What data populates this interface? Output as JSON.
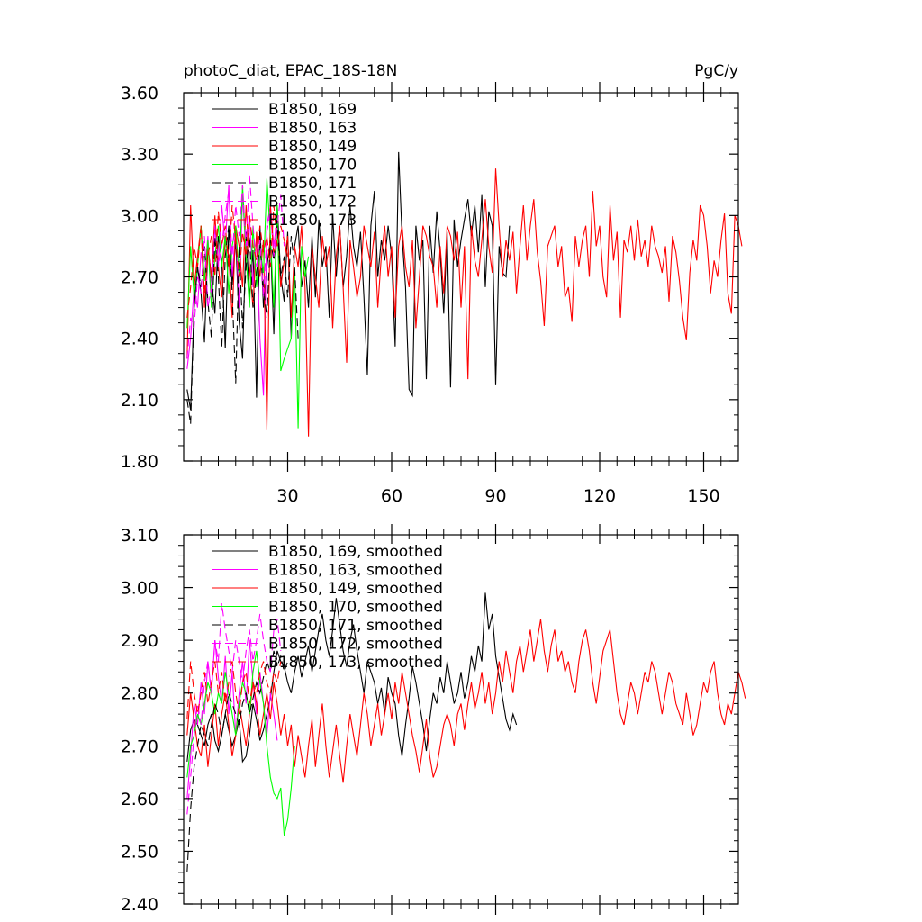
{
  "header": {
    "title": "photoC_diat, EPAC_18S-18N",
    "units": "PgC/y"
  },
  "chart_data": [
    {
      "type": "line",
      "title": "photoC_diat, EPAC_18S-18N",
      "units": "PgC/y",
      "xlim": [
        0,
        160
      ],
      "ylim": [
        1.8,
        3.6
      ],
      "x_ticks": [
        30,
        60,
        90,
        120,
        150
      ],
      "x_tick_labels": [
        "30",
        "60",
        "90",
        "120",
        "150"
      ],
      "y_ticks": [
        1.8,
        2.1,
        2.4,
        2.7,
        3.0,
        3.3,
        3.6
      ],
      "y_tick_labels": [
        "1.80",
        "2.10",
        "2.40",
        "2.70",
        "3.00",
        "3.30",
        "3.60"
      ],
      "legend_position": "top-left",
      "series": [
        {
          "name": "B1850, 169",
          "color": "#000000",
          "dash": false,
          "values": [
            2.15,
            2.05,
            2.55,
            2.75,
            2.62,
            2.38,
            2.85,
            2.7,
            2.52,
            2.9,
            2.78,
            2.35,
            2.95,
            2.66,
            2.88,
            2.48,
            2.3,
            2.92,
            2.6,
            2.83,
            2.11,
            2.95,
            2.55,
            2.75,
            2.88,
            2.42,
            3.05,
            2.7,
            2.58,
            2.92,
            2.4,
            2.85,
            2.95,
            2.65,
            2.78,
            2.55,
            2.9,
            2.6,
            2.98,
            2.75,
            2.85,
            2.5,
            3.0,
            2.7,
            2.95,
            2.65,
            2.8,
            3.05,
            2.85,
            2.75,
            2.92,
            2.6,
            2.22,
            2.95,
            3.12,
            2.7,
            2.88,
            2.78,
            2.95,
            2.8,
            2.36,
            3.31,
            2.9,
            2.65,
            2.15,
            2.12,
            2.95,
            2.78,
            2.88,
            2.2,
            2.95,
            2.72,
            3.02,
            2.82,
            2.52,
            2.92,
            2.16,
            2.98,
            2.75,
            2.88,
            2.98,
            3.08,
            2.9,
            3.05,
            2.82,
            3.1,
            2.65,
            3.02,
            2.95,
            2.17,
            2.85,
            2.72,
            2.7,
            2.95
          ]
        },
        {
          "name": "B1850, 163",
          "color": "#ff00ff",
          "dash": false,
          "values": [
            2.25,
            2.4,
            2.65,
            2.55,
            2.82,
            2.7,
            2.9,
            2.6,
            2.95,
            2.75,
            3.05,
            2.85,
            3.15,
            2.7,
            2.95,
            2.55,
            3.1,
            2.8,
            3.0,
            2.65,
            2.9,
            2.4,
            2.12,
            2.95,
            3.05,
            2.85,
            3.0
          ]
        },
        {
          "name": "B1850, 149",
          "color": "#ff0000",
          "dash": false,
          "values": [
            2.3,
            3.05,
            2.65,
            2.8,
            2.95,
            2.55,
            2.85,
            2.7,
            3.0,
            2.75,
            2.6,
            2.9,
            2.8,
            2.5,
            2.95,
            2.85,
            2.65,
            3.05,
            2.75,
            2.55,
            2.92,
            2.7,
            2.88,
            1.95,
            3.05,
            2.8,
            2.95,
            2.65,
            2.78,
            2.9,
            2.5,
            2.85,
            2.75,
            2.95,
            2.65,
            1.92,
            2.85,
            2.7,
            2.55,
            2.9,
            2.75,
            2.85,
            2.45,
            2.8,
            2.95,
            2.65,
            2.28,
            2.88,
            2.75,
            2.6,
            2.7,
            2.95,
            2.85,
            2.75,
            2.92,
            2.55,
            2.8,
            2.95,
            2.7,
            2.85,
            2.5,
            2.85,
            2.95,
            2.75,
            2.65,
            2.88,
            2.45,
            2.7,
            2.95,
            2.9,
            2.8,
            2.75,
            2.55,
            2.85,
            2.62,
            2.95,
            2.9,
            2.78,
            2.92,
            2.55,
            2.85,
            2.2,
            2.95,
            2.78,
            2.7,
            2.88,
            3.08,
            2.85,
            2.72,
            3.23,
            2.95,
            2.7,
            2.88,
            2.78,
            2.92,
            2.62,
            2.85,
            3.05,
            2.78,
            2.95,
            3.08,
            2.82,
            2.68,
            2.46,
            2.85,
            2.9,
            2.95,
            2.75,
            2.85,
            2.6,
            2.65,
            2.48,
            2.9,
            2.75,
            2.88,
            2.95,
            2.7,
            3.12,
            2.85,
            2.95,
            2.7,
            2.6,
            3.05,
            2.78,
            2.92,
            2.5,
            2.88,
            2.82,
            2.95,
            2.78,
            2.98,
            2.8,
            2.88,
            2.75,
            2.95,
            2.85,
            2.8,
            2.72,
            2.85,
            2.58,
            2.9,
            2.82,
            2.68,
            2.5,
            2.39,
            2.72,
            2.88,
            2.78,
            3.05,
            3.0,
            2.85,
            2.62,
            2.78,
            2.7,
            2.88,
            3.01,
            2.62,
            2.52,
            3.0,
            2.95,
            2.85
          ]
        },
        {
          "name": "B1850, 170",
          "color": "#00ff00",
          "dash": false,
          "values": [
            2.45,
            2.85,
            2.6,
            2.75,
            2.95,
            2.68,
            2.88,
            2.55,
            2.8,
            2.95,
            2.75,
            2.9,
            2.62,
            2.85,
            2.95,
            2.7,
            3.15,
            2.8,
            2.55,
            2.95,
            2.65,
            2.85,
            2.72,
            3.18,
            2.9,
            2.55,
            3.05,
            2.24,
            2.3,
            2.35,
            2.4,
            2.75,
            1.96,
            2.85,
            2.7,
            2.8
          ]
        },
        {
          "name": "B1850, 171",
          "color": "#000000",
          "dash": true,
          "values": [
            2.1,
            1.98,
            2.55,
            2.75,
            2.65,
            2.85,
            2.58,
            2.4,
            2.9,
            2.7,
            2.35,
            2.8,
            2.95,
            2.62,
            2.18,
            2.85,
            2.45,
            2.75,
            2.9,
            2.55,
            2.72,
            2.85,
            2.65,
            2.5,
            2.88,
            2.78,
            2.95,
            2.7,
            2.8,
            2.6,
            2.9,
            2.75,
            2.4
          ]
        },
        {
          "name": "B1850, 172",
          "color": "#ff00ff",
          "dash": true,
          "values": [
            2.3,
            2.5,
            2.45,
            2.7,
            2.62,
            2.9,
            2.55,
            2.65,
            2.95,
            2.75,
            2.85,
            3.0,
            3.12,
            2.8,
            3.05,
            2.9,
            3.15,
            2.85,
            3.2,
            2.95,
            2.75,
            2.88,
            2.6,
            2.92,
            3.02,
            2.8,
            2.95,
            3.1,
            2.85
          ]
        },
        {
          "name": "B1850, 173",
          "color": "#ff0000",
          "dash": true,
          "values": [
            2.5,
            2.65,
            2.85,
            2.75,
            2.95,
            2.62,
            2.8,
            2.9,
            2.7,
            3.02,
            2.85,
            2.95,
            2.75,
            3.05,
            2.88,
            2.7,
            2.92,
            2.8,
            3.0,
            2.85,
            2.78,
            2.95,
            2.82,
            2.9,
            2.75,
            3.05,
            2.85,
            2.95,
            2.88,
            2.8
          ]
        }
      ]
    },
    {
      "type": "line",
      "xlim": [
        0,
        160
      ],
      "ylim": [
        2.4,
        3.1
      ],
      "x_ticks": [
        30,
        60,
        90,
        120,
        150
      ],
      "x_tick_labels": [],
      "y_ticks": [
        2.4,
        2.5,
        2.6,
        2.7,
        2.8,
        2.9,
        3.0,
        3.1
      ],
      "y_tick_labels": [
        "2.40",
        "2.50",
        "2.60",
        "2.70",
        "2.80",
        "2.90",
        "3.00",
        "3.10"
      ],
      "legend_position": "top-left",
      "series": [
        {
          "name": "B1850, 169, smoothed",
          "color": "#000000",
          "dash": false,
          "values": [
            2.67,
            2.73,
            2.75,
            2.74,
            2.72,
            2.7,
            2.74,
            2.76,
            2.71,
            2.69,
            2.72,
            2.76,
            2.73,
            2.7,
            2.72,
            2.75,
            2.67,
            2.68,
            2.72,
            2.78,
            2.75,
            2.71,
            2.73,
            2.76,
            2.79,
            2.84,
            2.88,
            2.86,
            2.85,
            2.82,
            2.8,
            2.84,
            2.87,
            2.83,
            2.86,
            2.89,
            2.84,
            2.88,
            2.92,
            2.95,
            2.9,
            2.87,
            2.92,
            2.98,
            2.93,
            2.88,
            2.85,
            2.9,
            2.93,
            2.88,
            2.84,
            2.8,
            2.86,
            2.84,
            2.82,
            2.78,
            2.81,
            2.76,
            2.83,
            2.8,
            2.78,
            2.72,
            2.68,
            2.74,
            2.79,
            2.85,
            2.82,
            2.78,
            2.74,
            2.69,
            2.75,
            2.8,
            2.78,
            2.83,
            2.8,
            2.86,
            2.82,
            2.78,
            2.8,
            2.84,
            2.79,
            2.82,
            2.87,
            2.84,
            2.89,
            2.86,
            2.99,
            2.92,
            2.95,
            2.87,
            2.83,
            2.79,
            2.75,
            2.73,
            2.76,
            2.74
          ]
        },
        {
          "name": "B1850, 163, smoothed",
          "color": "#ff00ff",
          "dash": false,
          "values": [
            2.6,
            2.68,
            2.78,
            2.74,
            2.82,
            2.76,
            2.86,
            2.8,
            2.9,
            2.83,
            2.78,
            2.87,
            2.76,
            2.84,
            2.72,
            2.8,
            2.86,
            2.78,
            2.9,
            2.82,
            2.76,
            2.84,
            2.78,
            2.72,
            2.8,
            2.76,
            2.71
          ]
        },
        {
          "name": "B1850, 149, smoothed",
          "color": "#ff0000",
          "dash": false,
          "values": [
            2.72,
            2.8,
            2.75,
            2.7,
            2.68,
            2.74,
            2.66,
            2.72,
            2.78,
            2.7,
            2.76,
            2.8,
            2.74,
            2.68,
            2.72,
            2.78,
            2.74,
            2.7,
            2.76,
            2.82,
            2.78,
            2.72,
            2.76,
            2.8,
            2.75,
            2.82,
            2.78,
            2.72,
            2.76,
            2.7,
            2.74,
            2.66,
            2.72,
            2.68,
            2.64,
            2.7,
            2.75,
            2.66,
            2.72,
            2.78,
            2.7,
            2.64,
            2.69,
            2.74,
            2.68,
            2.63,
            2.7,
            2.76,
            2.72,
            2.68,
            2.74,
            2.8,
            2.76,
            2.7,
            2.74,
            2.78,
            2.72,
            2.76,
            2.8,
            2.75,
            2.82,
            2.78,
            2.84,
            2.8,
            2.76,
            2.72,
            2.69,
            2.65,
            2.7,
            2.75,
            2.68,
            2.64,
            2.66,
            2.7,
            2.74,
            2.76,
            2.74,
            2.7,
            2.76,
            2.78,
            2.73,
            2.78,
            2.82,
            2.77,
            2.8,
            2.84,
            2.78,
            2.82,
            2.76,
            2.8,
            2.86,
            2.82,
            2.88,
            2.84,
            2.8,
            2.86,
            2.89,
            2.84,
            2.88,
            2.92,
            2.86,
            2.9,
            2.94,
            2.88,
            2.84,
            2.89,
            2.92,
            2.86,
            2.88,
            2.84,
            2.86,
            2.82,
            2.8,
            2.86,
            2.9,
            2.92,
            2.88,
            2.82,
            2.78,
            2.83,
            2.88,
            2.9,
            2.92,
            2.86,
            2.8,
            2.76,
            2.74,
            2.78,
            2.82,
            2.8,
            2.76,
            2.8,
            2.84,
            2.82,
            2.86,
            2.84,
            2.8,
            2.76,
            2.8,
            2.84,
            2.82,
            2.78,
            2.76,
            2.74,
            2.8,
            2.76,
            2.72,
            2.74,
            2.78,
            2.82,
            2.8,
            2.84,
            2.86,
            2.8,
            2.76,
            2.74,
            2.78,
            2.76,
            2.8,
            2.84,
            2.82,
            2.79
          ]
        },
        {
          "name": "B1850, 170, smoothed",
          "color": "#00ff00",
          "dash": false,
          "values": [
            2.64,
            2.7,
            2.72,
            2.76,
            2.74,
            2.78,
            2.82,
            2.8,
            2.76,
            2.8,
            2.78,
            2.84,
            2.8,
            2.76,
            2.72,
            2.78,
            2.82,
            2.8,
            2.76,
            2.84,
            2.88,
            2.82,
            2.78,
            2.7,
            2.64,
            2.61,
            2.6,
            2.62,
            2.53,
            2.56,
            2.62,
            2.7
          ]
        },
        {
          "name": "B1850, 171, smoothed",
          "color": "#000000",
          "dash": true,
          "values": [
            2.46,
            2.58,
            2.66,
            2.7,
            2.74,
            2.72,
            2.7,
            2.74,
            2.78,
            2.76,
            2.72,
            2.76,
            2.8,
            2.78,
            2.76,
            2.74,
            2.78,
            2.8,
            2.76,
            2.79,
            2.82,
            2.8,
            2.83,
            2.86,
            2.84,
            2.88,
            2.85,
            2.87,
            2.84,
            2.86
          ]
        },
        {
          "name": "B1850, 172, smoothed",
          "color": "#ff00ff",
          "dash": true,
          "values": [
            2.57,
            2.64,
            2.72,
            2.78,
            2.74,
            2.82,
            2.86,
            2.8,
            2.9,
            2.86,
            2.97,
            2.92,
            2.88,
            2.84,
            2.9,
            2.86,
            2.82,
            2.88,
            2.92,
            2.86,
            2.9,
            2.95,
            2.9,
            2.86,
            2.84,
            2.92,
            2.94,
            2.88
          ]
        },
        {
          "name": "B1850, 173, smoothed",
          "color": "#ff0000",
          "dash": true,
          "values": [
            2.75,
            2.86,
            2.8,
            2.76,
            2.8,
            2.84,
            2.78,
            2.82,
            2.86,
            2.8,
            2.84,
            2.78,
            2.82,
            2.86,
            2.8,
            2.76,
            2.82,
            2.84,
            2.78,
            2.82,
            2.8,
            2.84,
            2.86,
            2.82,
            2.8,
            2.84,
            2.82,
            2.86
          ]
        }
      ]
    }
  ]
}
